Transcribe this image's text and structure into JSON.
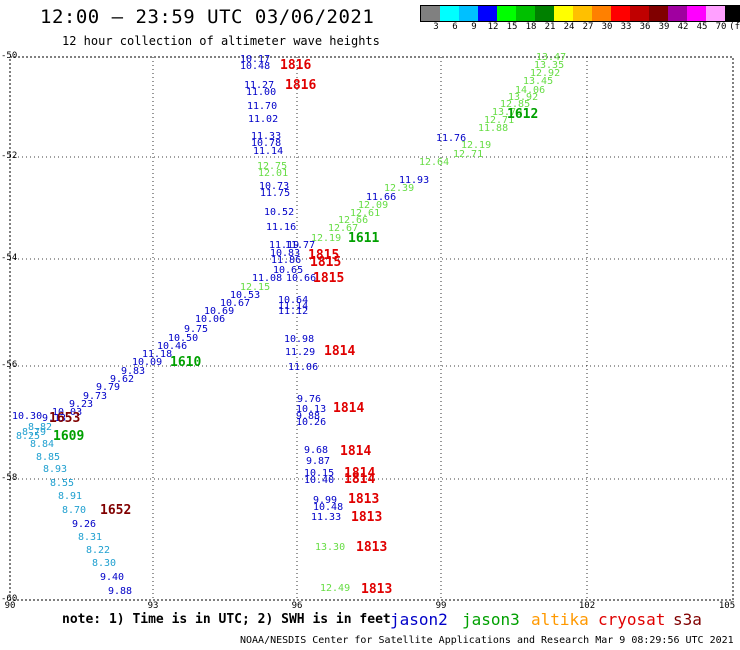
{
  "title": "12:00 — 23:59 UTC 03/06/2021",
  "subtitle": "12 hour collection of altimeter wave heights",
  "colorbar": {
    "colors": [
      "#808080",
      "#00ffff",
      "#00c0ff",
      "#0000ff",
      "#00ff00",
      "#00c000",
      "#008000",
      "#ffff00",
      "#ffc000",
      "#ff8000",
      "#ff0000",
      "#c00000",
      "#800000",
      "#a000a0",
      "#ff00ff",
      "#ffa0ff",
      "#000000"
    ],
    "labels": [
      "3",
      "6",
      "9",
      "12",
      "15",
      "18",
      "21",
      "24",
      "27",
      "30",
      "33",
      "36",
      "39",
      "42",
      "45",
      "70",
      "(ft)"
    ]
  },
  "axes": {
    "lat_labels": [
      "-50",
      "-52",
      "-54",
      "-56",
      "-58",
      "-60"
    ],
    "lon_labels": [
      "90",
      "93",
      "96",
      "99",
      "102",
      "105"
    ]
  },
  "colors": {
    "jason2": "#0000c8",
    "jason3": "#00a000",
    "jason3_light": "#66dd44",
    "cryosat": "#e00000",
    "s3a": "#800000",
    "s3a_light": "#20a0d0",
    "altika": "#ff9900"
  },
  "observations": [
    {
      "v": "10.17",
      "c": "jason2"
    },
    {
      "v": "10.48",
      "c": "jason2"
    },
    {
      "v": "11.27",
      "c": "jason2"
    },
    {
      "v": "11.00",
      "c": "jason2"
    },
    {
      "v": "11.70",
      "c": "jason2"
    },
    {
      "v": "11.02",
      "c": "jason2"
    },
    {
      "v": "11.33",
      "c": "jason2"
    },
    {
      "v": "10.78",
      "c": "jason2"
    },
    {
      "v": "11.14",
      "c": "jason2"
    },
    {
      "v": "12.75",
      "c": "light"
    },
    {
      "v": "12.01",
      "c": "light"
    },
    {
      "v": "10.73",
      "c": "jason2"
    },
    {
      "v": "11.75",
      "c": "jason2"
    },
    {
      "v": "10.52",
      "c": "jason2"
    },
    {
      "v": "11.16",
      "c": "jason2"
    },
    {
      "v": "11.19",
      "c": "jason2"
    },
    {
      "v": "11.77",
      "c": "jason2"
    },
    {
      "v": "10.83",
      "c": "jason2"
    },
    {
      "v": "11.86",
      "c": "jason2"
    },
    {
      "v": "10.65",
      "c": "jason2"
    },
    {
      "v": "11.08",
      "c": "jason2"
    },
    {
      "v": "10.66",
      "c": "jason2"
    },
    {
      "v": "10.64",
      "c": "jason2"
    },
    {
      "v": "11.14",
      "c": "jason2"
    },
    {
      "v": "11.12",
      "c": "jason2"
    },
    {
      "v": "10.98",
      "c": "jason2"
    },
    {
      "v": "11.29",
      "c": "jason2"
    },
    {
      "v": "11.06",
      "c": "jason2"
    },
    {
      "v": "9.76",
      "c": "jason2"
    },
    {
      "v": "10.13",
      "c": "jason2"
    },
    {
      "v": "9.88",
      "c": "jason2"
    },
    {
      "v": "10.26",
      "c": "jason2"
    },
    {
      "v": "9.68",
      "c": "jason2"
    },
    {
      "v": "9.87",
      "c": "jason2"
    },
    {
      "v": "10.15",
      "c": "jason2"
    },
    {
      "v": "10.40",
      "c": "jason2"
    },
    {
      "v": "9.99",
      "c": "jason2"
    },
    {
      "v": "10.48",
      "c": "jason2"
    },
    {
      "v": "11.33",
      "c": "jason2"
    },
    {
      "v": "13.30",
      "c": "light"
    },
    {
      "v": "12.49",
      "c": "light"
    },
    {
      "v": "13.47",
      "c": "light"
    },
    {
      "v": "13.35",
      "c": "light"
    },
    {
      "v": "12.92",
      "c": "light"
    },
    {
      "v": "13.45",
      "c": "light"
    },
    {
      "v": "14.06",
      "c": "light"
    },
    {
      "v": "13.92",
      "c": "light"
    },
    {
      "v": "12.85",
      "c": "light"
    },
    {
      "v": "13.70",
      "c": "light"
    },
    {
      "v": "12.71",
      "c": "light"
    },
    {
      "v": "11.88",
      "c": "light"
    },
    {
      "v": "11.76",
      "c": "jason2"
    },
    {
      "v": "12.19",
      "c": "light"
    },
    {
      "v": "12.71",
      "c": "light"
    },
    {
      "v": "12.64",
      "c": "light"
    },
    {
      "v": "11.93",
      "c": "jason2"
    },
    {
      "v": "12.39",
      "c": "light"
    },
    {
      "v": "11.66",
      "c": "jason2"
    },
    {
      "v": "12.09",
      "c": "light"
    },
    {
      "v": "12.61",
      "c": "light"
    },
    {
      "v": "12.66",
      "c": "light"
    },
    {
      "v": "12.67",
      "c": "light"
    },
    {
      "v": "12.19",
      "c": "light"
    },
    {
      "v": "12.15",
      "c": "light"
    },
    {
      "v": "10.53",
      "c": "jason2"
    },
    {
      "v": "10.67",
      "c": "jason2"
    },
    {
      "v": "10.69",
      "c": "jason2"
    },
    {
      "v": "10.06",
      "c": "jason2"
    },
    {
      "v": "9.75",
      "c": "jason2"
    },
    {
      "v": "10.50",
      "c": "jason2"
    },
    {
      "v": "10.46",
      "c": "jason2"
    },
    {
      "v": "11.18",
      "c": "jason2"
    },
    {
      "v": "10.09",
      "c": "jason2"
    },
    {
      "v": "9.83",
      "c": "jason2"
    },
    {
      "v": "9.62",
      "c": "jason2"
    },
    {
      "v": "9.79",
      "c": "jason2"
    },
    {
      "v": "9.73",
      "c": "jason2"
    },
    {
      "v": "9.23",
      "c": "jason2"
    },
    {
      "v": "10.03",
      "c": "jason2"
    },
    {
      "v": "10.30",
      "c": "jason2"
    },
    {
      "v": "9.13",
      "c": "jason2"
    },
    {
      "v": "8.82",
      "c": "s3a_light"
    },
    {
      "v": "8.79",
      "c": "s3a_light"
    },
    {
      "v": "8.25",
      "c": "s3a_light"
    },
    {
      "v": "8.84",
      "c": "s3a_light"
    },
    {
      "v": "8.85",
      "c": "s3a_light"
    },
    {
      "v": "8.93",
      "c": "s3a_light"
    },
    {
      "v": "8.55",
      "c": "s3a_light"
    },
    {
      "v": "8.91",
      "c": "s3a_light"
    },
    {
      "v": "8.70",
      "c": "s3a_light"
    },
    {
      "v": "9.26",
      "c": "jason2"
    },
    {
      "v": "8.31",
      "c": "s3a_light"
    },
    {
      "v": "8.22",
      "c": "s3a_light"
    },
    {
      "v": "8.30",
      "c": "s3a_light"
    },
    {
      "v": "9.40",
      "c": "jason2"
    },
    {
      "v": "9.88",
      "c": "jason2"
    }
  ],
  "passes": [
    {
      "t": "1816",
      "c": "cryosat"
    },
    {
      "t": "1816",
      "c": "cryosat"
    },
    {
      "t": "1612",
      "c": "jason3"
    },
    {
      "t": "1611",
      "c": "jason3"
    },
    {
      "t": "1815",
      "c": "cryosat"
    },
    {
      "t": "1815",
      "c": "cryosat"
    },
    {
      "t": "1815",
      "c": "cryosat"
    },
    {
      "t": "1814",
      "c": "cryosat"
    },
    {
      "t": "1814",
      "c": "cryosat"
    },
    {
      "t": "1814",
      "c": "cryosat"
    },
    {
      "t": "1814",
      "c": "cryosat"
    },
    {
      "t": "1814",
      "c": "cryosat"
    },
    {
      "t": "1813",
      "c": "cryosat"
    },
    {
      "t": "1813",
      "c": "cryosat"
    },
    {
      "t": "1813",
      "c": "cryosat"
    },
    {
      "t": "1813",
      "c": "cryosat"
    },
    {
      "t": "1610",
      "c": "jason3"
    },
    {
      "t": "1653",
      "c": "s3a"
    },
    {
      "t": "1609",
      "c": "jason3"
    },
    {
      "t": "1652",
      "c": "s3a"
    }
  ],
  "note": "note: 1) Time is in UTC; 2) SWH is in feet",
  "legend": [
    {
      "name": "jason2",
      "c": "jason2"
    },
    {
      "name": "jason3",
      "c": "jason3"
    },
    {
      "name": "altika",
      "c": "altika"
    },
    {
      "name": "cryosat",
      "c": "cryosat"
    },
    {
      "name": "s3a",
      "c": "s3a"
    }
  ],
  "footer": "NOAA/NESDIS Center for Satellite Applications and Research   Mar  9 08:29:56 UTC 2021"
}
